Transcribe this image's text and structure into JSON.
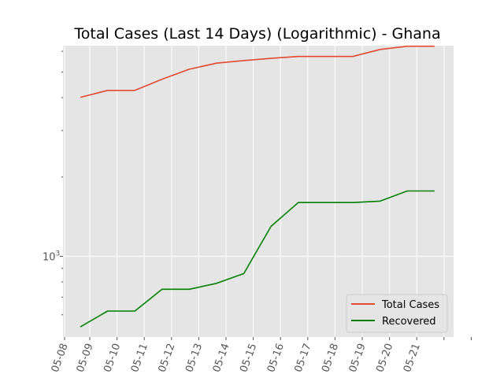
{
  "chart_data": {
    "type": "line",
    "title": "Total Cases (Last 14 Days) (Logarithmic) - Ghana",
    "xlabel": "",
    "ylabel": "",
    "y_scale": "log",
    "x": [
      "05-08",
      "05-09",
      "05-10",
      "05-11",
      "05-12",
      "05-13",
      "05-14",
      "05-15",
      "05-16",
      "05-17",
      "05-18",
      "05-19",
      "05-20",
      "05-21"
    ],
    "x_tick_labels": [
      "05-08",
      "05-09",
      "05-10",
      "05-11",
      "05-12",
      "05-13",
      "05-14",
      "05-15",
      "05-16",
      "05-17",
      "05-18",
      "05-19",
      "05-20",
      "05-21"
    ],
    "y_tick_labels": [
      {
        "value": 1000,
        "label": "10",
        "exp": "3"
      }
    ],
    "ylim": [
      494,
      6300
    ],
    "series": [
      {
        "name": "Total Cases",
        "color": "#E24A33",
        "points": [
          [
            "05-08",
            4012
          ],
          [
            "05-09",
            4263
          ],
          [
            "05-10",
            4263
          ],
          [
            "05-11",
            4700
          ],
          [
            "05-12",
            5127
          ],
          [
            "05-13",
            5408
          ],
          [
            "05-14",
            5530
          ],
          [
            "05-15",
            5638
          ],
          [
            "05-16",
            5735
          ],
          [
            "05-17",
            5735
          ],
          [
            "05-18",
            5735
          ],
          [
            "05-19",
            6096
          ],
          [
            "05-20",
            6269
          ],
          [
            "05-21",
            6269
          ]
        ]
      },
      {
        "name": "Recovered",
        "color": "#008000",
        "points": [
          [
            "05-08",
            540
          ],
          [
            "05-09",
            620
          ],
          [
            "05-10",
            620
          ],
          [
            "05-11",
            750
          ],
          [
            "05-12",
            750
          ],
          [
            "05-13",
            790
          ],
          [
            "05-14",
            860
          ],
          [
            "05-15",
            1300
          ],
          [
            "05-16",
            1600
          ],
          [
            "05-17",
            1600
          ],
          [
            "05-18",
            1600
          ],
          [
            "05-19",
            1620
          ],
          [
            "05-20",
            1770
          ],
          [
            "05-21",
            1770
          ]
        ]
      }
    ],
    "grid": true,
    "legend_position": "lower-right",
    "background_color": "#E5E5E5",
    "grid_color": "#FFFFFF"
  }
}
